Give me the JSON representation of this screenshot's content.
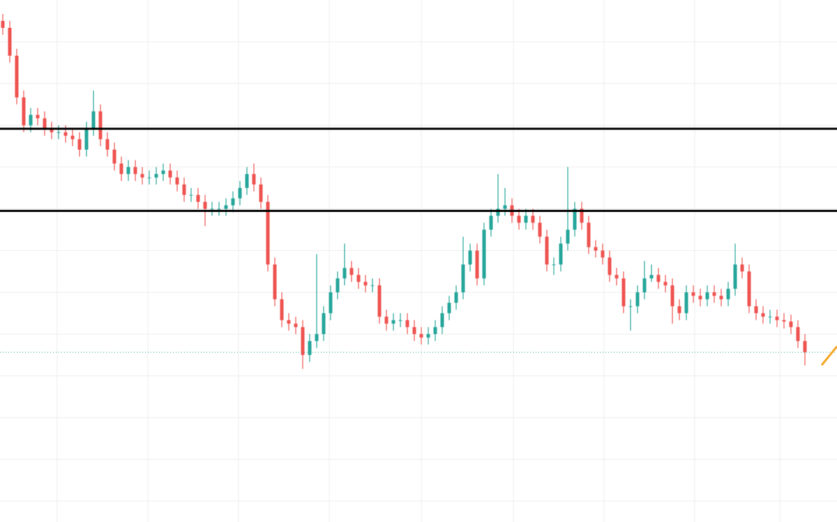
{
  "chart_data": {
    "type": "candlestick",
    "open": [
      720,
      710,
      670,
      610,
      570,
      585,
      580,
      565,
      560,
      560,
      555,
      550,
      535,
      565,
      590,
      550,
      535,
      515,
      500,
      510,
      500,
      495,
      495,
      500,
      505,
      495,
      485,
      470,
      470,
      460,
      450,
      450,
      450,
      455,
      465,
      480,
      500,
      485,
      460,
      370,
      320,
      290,
      285,
      280,
      240,
      260,
      270,
      300,
      330,
      350,
      365,
      355,
      345,
      340,
      340,
      295,
      285,
      290,
      290,
      280,
      270,
      265,
      270,
      280,
      300,
      315,
      330,
      370,
      390,
      350,
      420,
      440,
      450,
      455,
      440,
      430,
      440,
      430,
      410,
      370,
      370,
      400,
      420,
      450,
      430,
      395,
      390,
      380,
      355,
      350,
      310,
      310,
      330,
      350,
      355,
      345,
      340,
      310,
      300,
      330,
      325,
      320,
      330,
      325,
      320,
      335,
      370,
      360,
      310,
      300,
      295,
      295,
      290,
      288,
      280,
      260
    ],
    "high": [
      730,
      720,
      680,
      620,
      595,
      595,
      590,
      575,
      570,
      570,
      565,
      560,
      575,
      620,
      600,
      560,
      545,
      525,
      520,
      520,
      510,
      505,
      510,
      515,
      515,
      505,
      495,
      480,
      480,
      470,
      460,
      460,
      465,
      475,
      490,
      510,
      515,
      495,
      470,
      380,
      330,
      300,
      295,
      290,
      270,
      385,
      310,
      340,
      360,
      400,
      375,
      365,
      355,
      350,
      350,
      305,
      300,
      300,
      300,
      290,
      280,
      280,
      290,
      310,
      325,
      340,
      410,
      400,
      400,
      430,
      450,
      500,
      480,
      465,
      450,
      450,
      450,
      440,
      420,
      380,
      410,
      510,
      460,
      460,
      440,
      405,
      400,
      390,
      365,
      360,
      320,
      340,
      375,
      370,
      365,
      355,
      350,
      320,
      340,
      340,
      335,
      340,
      340,
      335,
      345,
      400,
      380,
      370,
      320,
      310,
      305,
      305,
      300,
      298,
      290,
      270
    ],
    "low": [
      700,
      660,
      600,
      560,
      560,
      570,
      555,
      550,
      550,
      545,
      540,
      525,
      525,
      555,
      540,
      525,
      505,
      490,
      490,
      490,
      485,
      485,
      485,
      490,
      485,
      475,
      460,
      460,
      450,
      425,
      440,
      440,
      440,
      445,
      455,
      470,
      475,
      450,
      360,
      310,
      280,
      275,
      270,
      220,
      230,
      250,
      260,
      290,
      320,
      340,
      345,
      335,
      330,
      330,
      285,
      275,
      275,
      280,
      270,
      260,
      255,
      255,
      260,
      270,
      290,
      305,
      320,
      360,
      340,
      340,
      410,
      430,
      440,
      430,
      420,
      420,
      420,
      400,
      360,
      355,
      360,
      390,
      410,
      420,
      385,
      380,
      370,
      345,
      340,
      300,
      275,
      300,
      320,
      345,
      335,
      330,
      285,
      290,
      290,
      315,
      310,
      310,
      315,
      310,
      310,
      325,
      350,
      300,
      290,
      285,
      285,
      280,
      278,
      270,
      250,
      225
    ],
    "close": [
      710,
      670,
      610,
      570,
      585,
      580,
      565,
      560,
      560,
      555,
      550,
      535,
      565,
      590,
      550,
      535,
      515,
      500,
      510,
      500,
      495,
      495,
      500,
      505,
      495,
      485,
      470,
      470,
      460,
      450,
      450,
      450,
      455,
      465,
      480,
      500,
      485,
      460,
      370,
      320,
      290,
      285,
      280,
      240,
      260,
      270,
      300,
      330,
      350,
      365,
      355,
      345,
      340,
      340,
      295,
      285,
      290,
      290,
      280,
      270,
      265,
      270,
      280,
      300,
      315,
      330,
      370,
      390,
      350,
      420,
      440,
      450,
      455,
      440,
      430,
      440,
      430,
      410,
      370,
      370,
      400,
      420,
      450,
      430,
      395,
      390,
      380,
      355,
      350,
      310,
      310,
      330,
      350,
      355,
      345,
      340,
      310,
      300,
      330,
      325,
      320,
      330,
      325,
      320,
      335,
      370,
      360,
      310,
      300,
      295,
      295,
      290,
      288,
      280,
      260,
      244
    ],
    "up_color": "#26a69a",
    "down_color": "#ef5350",
    "ylim": [
      0,
      750
    ],
    "yticks": [
      30,
      90,
      150,
      210,
      270,
      330,
      390,
      450,
      510,
      570,
      630,
      690
    ],
    "grid": true,
    "levels": [
      565,
      447
    ],
    "level_color": "#000000",
    "last_price": 244
  }
}
